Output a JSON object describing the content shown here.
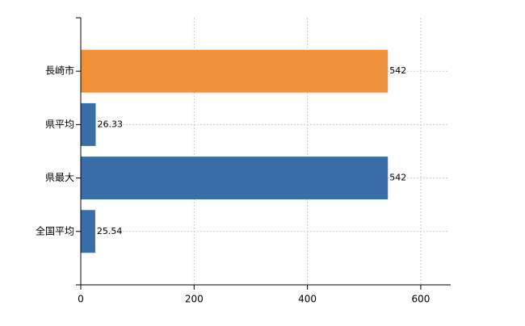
{
  "chart_data": {
    "type": "bar",
    "orientation": "horizontal",
    "categories": [
      "長崎市",
      "県平均",
      "県最大",
      "全国平均"
    ],
    "values": [
      542,
      26.33,
      542,
      25.54
    ],
    "colors": [
      "#f0913a",
      "#3a6ea8",
      "#3a6ea8",
      "#3a6ea8"
    ],
    "xlim": [
      0,
      650
    ],
    "xticks": [
      0,
      200,
      400,
      600
    ],
    "grid": true
  }
}
